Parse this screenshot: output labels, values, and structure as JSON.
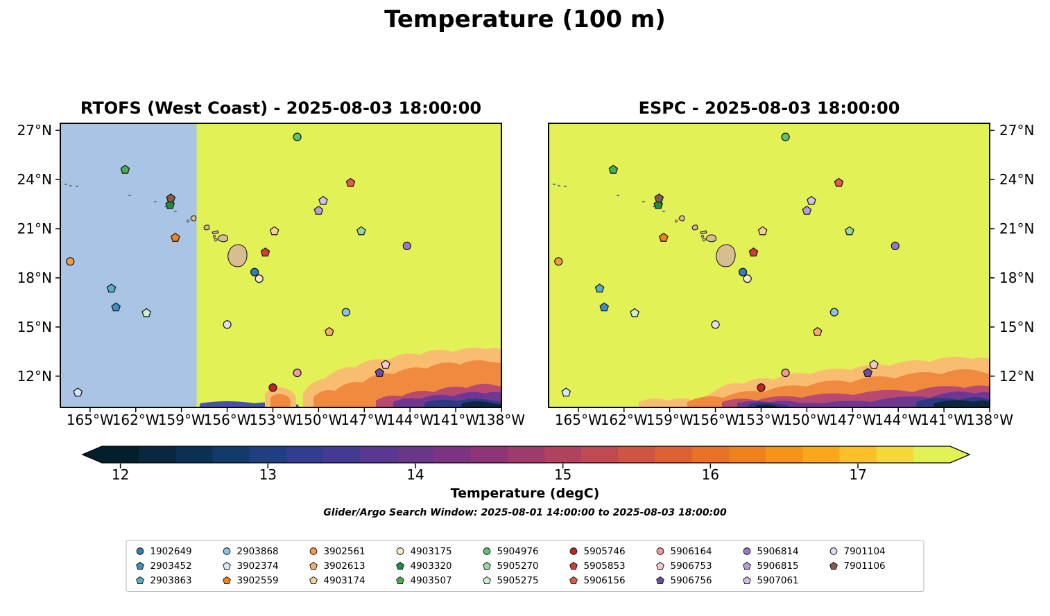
{
  "title": "Temperature (100 m)",
  "search_window": "Glider/Argo Search Window: 2025-08-01 14:00:00 to 2025-08-03 18:00:00",
  "panels": [
    {
      "id": "rtofs",
      "title": "RTOFS (West Coast) - 2025-08-03 18:00:00",
      "ylabel_side": "left",
      "nodata_lon_max": -158.0
    },
    {
      "id": "espc",
      "title": "ESPC - 2025-08-03 18:00:00",
      "ylabel_side": "right",
      "nodata_lon_max": null
    }
  ],
  "chart_data": {
    "type": "map-scatter",
    "extent": {
      "lon_min": -166.95,
      "lon_max": -138.0,
      "lat_min": 10.09,
      "lat_max": 27.43
    },
    "map_fill": "#e2f155",
    "nodata_fill": "#a9c4e4",
    "island_fill": "#d8bd90",
    "lat_ticks": [
      {
        "value": 27,
        "label": "27°N"
      },
      {
        "value": 24,
        "label": "24°N"
      },
      {
        "value": 21,
        "label": "21°N"
      },
      {
        "value": 18,
        "label": "18°N"
      },
      {
        "value": 15,
        "label": "15°N"
      },
      {
        "value": 12,
        "label": "12°N"
      }
    ],
    "lon_ticks": [
      {
        "value": -165,
        "label": "165°W"
      },
      {
        "value": -162,
        "label": "162°W"
      },
      {
        "value": -159,
        "label": "159°W"
      },
      {
        "value": -156,
        "label": "156°W"
      },
      {
        "value": -153,
        "label": "153°W"
      },
      {
        "value": -150,
        "label": "150°W"
      },
      {
        "value": -147,
        "label": "147°W"
      },
      {
        "value": -144,
        "label": "144°W"
      },
      {
        "value": -141,
        "label": "141°W"
      },
      {
        "value": -138,
        "label": "138°W"
      }
    ],
    "floats": [
      {
        "wmo": "1902649",
        "shape": "circle",
        "color": "#2d7fbd",
        "lon": -154.2,
        "lat": 18.35
      },
      {
        "wmo": "2903452",
        "shape": "pentagon",
        "color": "#3e8ec4",
        "lon": -163.3,
        "lat": 16.2
      },
      {
        "wmo": "2903863",
        "shape": "pentagon",
        "color": "#56aec9",
        "lon": -163.6,
        "lat": 17.35
      },
      {
        "wmo": "2903868",
        "shape": "circle",
        "color": "#8cc3e4",
        "lon": -148.2,
        "lat": 15.9
      },
      {
        "wmo": "3902374",
        "shape": "pentagon",
        "color": "#d6e8f5",
        "lon": -165.8,
        "lat": 11.0
      },
      {
        "wmo": "3902559",
        "shape": "pentagon",
        "color": "#f5821e",
        "lon": -159.4,
        "lat": 20.45
      },
      {
        "wmo": "3902561",
        "shape": "circle",
        "color": "#f79a42",
        "lon": -166.3,
        "lat": 19.0
      },
      {
        "wmo": "3902613",
        "shape": "pentagon",
        "color": "#f9ae63",
        "lon": -149.3,
        "lat": 14.7
      },
      {
        "wmo": "4903174",
        "shape": "pentagon",
        "color": "#fccf96",
        "lon": -152.9,
        "lat": 20.85
      },
      {
        "wmo": "4903175",
        "shape": "circle",
        "color": "#fde7c4",
        "lon": -153.9,
        "lat": 17.95
      },
      {
        "wmo": "4903320",
        "shape": "pentagon",
        "color": "#1f8f3f",
        "lon": -159.75,
        "lat": 22.45
      },
      {
        "wmo": "4903507",
        "shape": "pentagon",
        "color": "#4cae50",
        "lon": -162.7,
        "lat": 24.6
      },
      {
        "wmo": "5904976",
        "shape": "circle",
        "color": "#5fc172",
        "lon": -151.4,
        "lat": 26.6
      },
      {
        "wmo": "5905270",
        "shape": "pentagon",
        "color": "#93d9a0",
        "lon": -147.2,
        "lat": 20.85
      },
      {
        "wmo": "5905275",
        "shape": "pentagon",
        "color": "#cdefcd",
        "lon": -161.3,
        "lat": 15.85
      },
      {
        "wmo": "5905746",
        "shape": "circle",
        "color": "#c02423",
        "lon": -153.0,
        "lat": 11.3
      },
      {
        "wmo": "5905853",
        "shape": "pentagon",
        "color": "#d23c35",
        "lon": -153.5,
        "lat": 19.55
      },
      {
        "wmo": "5906156",
        "shape": "pentagon",
        "color": "#e25a4a",
        "lon": -147.9,
        "lat": 23.8
      },
      {
        "wmo": "5906164",
        "shape": "circle",
        "color": "#f29a9e",
        "lon": -151.4,
        "lat": 12.2
      },
      {
        "wmo": "5906753",
        "shape": "pentagon",
        "color": "#f8c9cb",
        "lon": -145.6,
        "lat": 12.7
      },
      {
        "wmo": "5906756",
        "shape": "pentagon",
        "color": "#6b4ea3",
        "lon": -146.0,
        "lat": 12.2
      },
      {
        "wmo": "5906814",
        "shape": "circle",
        "color": "#9a79c6",
        "lon": -144.2,
        "lat": 19.95
      },
      {
        "wmo": "5906815",
        "shape": "pentagon",
        "color": "#b89fdb",
        "lon": -150.0,
        "lat": 22.1
      },
      {
        "wmo": "5907061",
        "shape": "pentagon",
        "color": "#cfc0e8",
        "lon": -149.7,
        "lat": 22.7
      },
      {
        "wmo": "7901104",
        "shape": "circle",
        "color": "#e5dcf4",
        "lon": -156.0,
        "lat": 15.15
      },
      {
        "wmo": "7901106",
        "shape": "pentagon",
        "color": "#8a5a48",
        "lon": -159.7,
        "lat": 22.85
      }
    ],
    "colorbar": {
      "label": "Temperature (degC)",
      "min": 11.875,
      "max": 17.625,
      "ticks": [
        12,
        13,
        14,
        15,
        16,
        17
      ],
      "extend": "both",
      "colors": [
        "#041f2c",
        "#07283e",
        "#0b3152",
        "#123a6a",
        "#1f3f81",
        "#323d8e",
        "#453a92",
        "#583890",
        "#6a368a",
        "#7c3482",
        "#8e3578",
        "#9f3a6c",
        "#b0415f",
        "#c04a51",
        "#cf5542",
        "#dc6233",
        "#e77126",
        "#ef821c",
        "#f59417",
        "#f9a81a",
        "#fbbf28",
        "#f5d838",
        "#e2f155"
      ]
    },
    "field_notes": {
      "rtofs": "Field mostly warmer than 17.6 degC (yellow); light blue region west of ~158W is outside the RTOFS West Coast domain; cold filaments (16 down to <12 degC) along the southern edge east of ~153W.",
      "espc": "Field mostly warmer than 17.6 degC (yellow); cold filaments (16 down to <12 degC) along the southern edge with dark cores near 146-141W and ~156W below 12N."
    }
  }
}
